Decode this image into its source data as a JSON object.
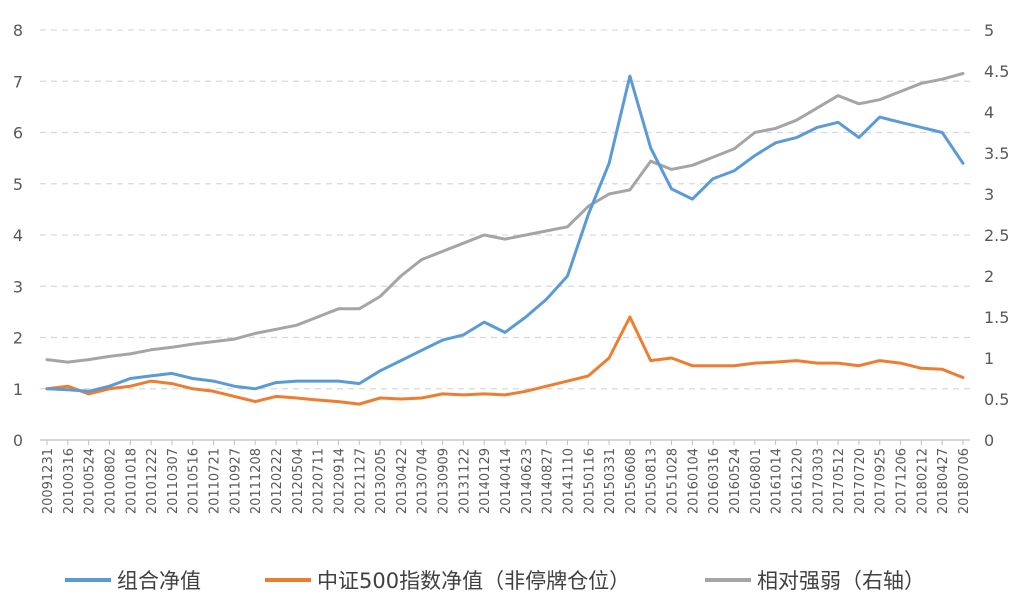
{
  "chart_data": {
    "type": "line",
    "title": "",
    "xlabel": "",
    "ylabel": "",
    "ylim_left": [
      0,
      8
    ],
    "ylim_right": [
      0,
      5
    ],
    "y_ticks_left": [
      "0",
      "1",
      "2",
      "3",
      "4",
      "5",
      "6",
      "7",
      "8"
    ],
    "y_ticks_right": [
      "0",
      "0.5",
      "1",
      "1.5",
      "2",
      "2.5",
      "3",
      "3.5",
      "4",
      "4.5",
      "5"
    ],
    "grid": "horizontal dashed",
    "legend_position": "bottom",
    "categories": [
      "20091231",
      "20100316",
      "20100524",
      "20100802",
      "20101018",
      "20101222",
      "20110307",
      "20110516",
      "20110721",
      "20110927",
      "20111208",
      "20120222",
      "20120504",
      "20120711",
      "20120914",
      "20121127",
      "20130205",
      "20130422",
      "20130704",
      "20130909",
      "20131122",
      "20140129",
      "20140414",
      "20140623",
      "20140827",
      "20141110",
      "20150116",
      "20150331",
      "20150608",
      "20150813",
      "20151028",
      "20160104",
      "20160316",
      "20160524",
      "20160801",
      "20161014",
      "20161220",
      "20170303",
      "20170512",
      "20170720",
      "20170925",
      "20171206",
      "20180212",
      "20180427",
      "20180706"
    ],
    "series": [
      {
        "name": "组合净值",
        "axis": "left",
        "color": "#5B9BD5",
        "values": [
          1.0,
          0.98,
          0.95,
          1.05,
          1.2,
          1.25,
          1.3,
          1.2,
          1.15,
          1.05,
          1.0,
          1.12,
          1.15,
          1.15,
          1.15,
          1.1,
          1.35,
          1.55,
          1.75,
          1.95,
          2.05,
          2.3,
          2.1,
          2.4,
          2.75,
          3.2,
          4.4,
          5.4,
          7.1,
          5.7,
          4.9,
          4.7,
          5.1,
          5.25,
          5.55,
          5.8,
          5.9,
          6.1,
          6.2,
          5.9,
          6.3,
          6.2,
          6.1,
          6.0,
          5.4
        ]
      },
      {
        "name": "中证500指数净值（非停牌仓位）",
        "axis": "left",
        "color": "#ED7D31",
        "values": [
          1.0,
          1.05,
          0.9,
          1.0,
          1.05,
          1.15,
          1.1,
          1.0,
          0.95,
          0.85,
          0.75,
          0.85,
          0.82,
          0.78,
          0.75,
          0.7,
          0.82,
          0.8,
          0.82,
          0.9,
          0.88,
          0.9,
          0.88,
          0.95,
          1.05,
          1.15,
          1.25,
          1.6,
          2.4,
          1.55,
          1.6,
          1.45,
          1.45,
          1.45,
          1.5,
          1.52,
          1.55,
          1.5,
          1.5,
          1.45,
          1.55,
          1.5,
          1.4,
          1.38,
          1.22
        ]
      },
      {
        "name": "相对强弱（右轴）",
        "axis": "right",
        "color": "#A5A5A5",
        "values": [
          0.98,
          0.95,
          0.98,
          1.02,
          1.05,
          1.1,
          1.13,
          1.17,
          1.2,
          1.23,
          1.3,
          1.35,
          1.4,
          1.5,
          1.6,
          1.6,
          1.75,
          2.0,
          2.2,
          2.3,
          2.4,
          2.5,
          2.45,
          2.5,
          2.55,
          2.6,
          2.85,
          3.0,
          3.05,
          3.4,
          3.3,
          3.35,
          3.45,
          3.55,
          3.75,
          3.8,
          3.9,
          4.05,
          4.2,
          4.1,
          4.15,
          4.25,
          4.35,
          4.4,
          4.47
        ]
      }
    ]
  }
}
